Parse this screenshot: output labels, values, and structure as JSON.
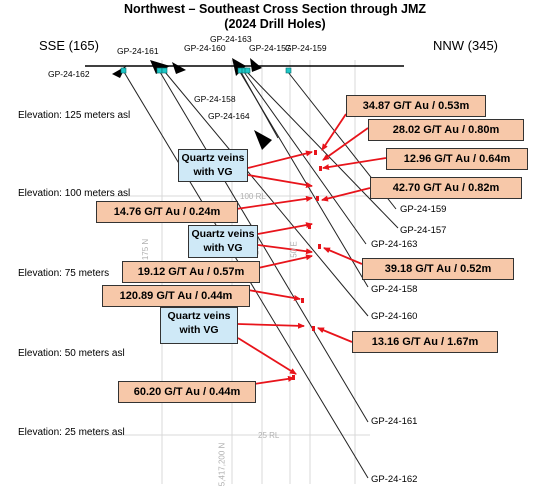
{
  "title_line1": "Northwest – Southeast Cross Section through JMZ",
  "title_line2": "(2024 Drill Holes)",
  "left_direction": "SSE (165)",
  "right_direction": "NNW (345)",
  "elevations": [
    "Elevation: 125 meters asl",
    "Elevation: 100 meters asl",
    "Elevation: 75 meters",
    "Elevation: 50 meters asl",
    "Elevation: 25 meters asl"
  ],
  "collar_labels": {
    "gp162": "GP-24-162",
    "gp161": "GP-24-161",
    "gp160": "GP-24-160",
    "gp163": "GP-24-163",
    "gp157": "GP-24-157",
    "gp159": "GP-24-159",
    "gp158": "GP-24-158",
    "gp164": "GP-24-164"
  },
  "hole_end_labels": {
    "gp159": "GP-24-159",
    "gp157": "GP-24-157",
    "gp163": "GP-24-163",
    "gp158": "GP-24-158",
    "gp160": "GP-24-160",
    "gp161": "GP-24-161",
    "gp162": "GP-24-162"
  },
  "assays": [
    "34.87 G/T Au / 0.53m",
    "28.02  G/T Au / 0.80m",
    "12.96  G/T Au / 0.64m",
    "42.70  G/T Au / 0.82m",
    "14.76 G/T Au / 0.24m",
    "39.18  G/T Au / 0.52m",
    "19.12  G/T Au / 0.57m",
    "120.89 G/T Au / 0.44m",
    "13.16  G/T Au / 1.67m",
    "60.20 G/T Au / 0.44m"
  ],
  "veins": [
    {
      "line1": "Quartz veins",
      "line2": "with VG"
    },
    {
      "line1": "Quartz veins",
      "line2": "with VG"
    },
    {
      "line1": "Quartz veins",
      "line2": "with VG"
    }
  ],
  "background_labels": {
    "rl100": "100 RL",
    "rl25": "25 RL",
    "e175n": "175 N",
    "e50e": "50 E",
    "e25e": "25 E",
    "grid_a": "5,417,200 N"
  },
  "colors": {
    "assay_fill": "#f7c8a9",
    "vein_fill": "#cfe9f7",
    "arrow": "#e8141b",
    "collar": "#1cc6c6"
  }
}
